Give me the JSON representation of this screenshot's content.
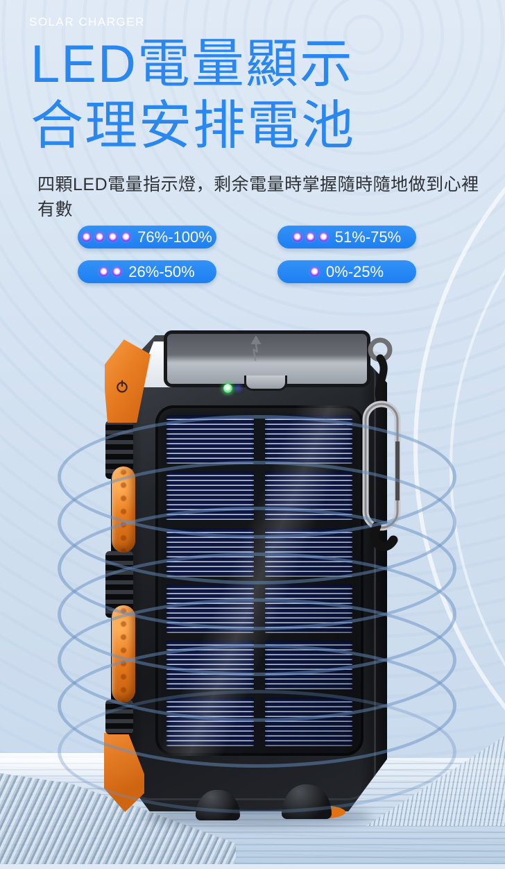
{
  "header": {
    "brand_tag": "SOLAR CHARGER",
    "title_line1": "LED電量顯示",
    "title_line2": "合理安排電池",
    "description": "四顆LED電量指示燈，剩余電量時掌握隨時隨地做到心裡有數"
  },
  "battery_levels": [
    {
      "label": "76%-100%",
      "led_count": 4
    },
    {
      "label": "51%-75%",
      "led_count": 3
    },
    {
      "label": "26%-50%",
      "led_count": 2
    },
    {
      "label": "0%-25%",
      "led_count": 1
    }
  ],
  "product": {
    "type": "solar-charger-power-bank",
    "indicator_panel": {
      "status_led_color": "green",
      "level_led_count": 4
    }
  },
  "colors": {
    "title_blue": "#2b87f0",
    "badge_blue": "#1d7ff2",
    "badge_text": "#ffffff",
    "led_dot_purple": "#8a35f0",
    "accent_orange": "#e87d22",
    "body_black": "#1f2226",
    "solar_navy": "#0d1740",
    "ring_blue": "rgba(104,143,194,0.5)",
    "background_top": "#e0eaf6",
    "background_bottom": "#c7d9ec"
  }
}
